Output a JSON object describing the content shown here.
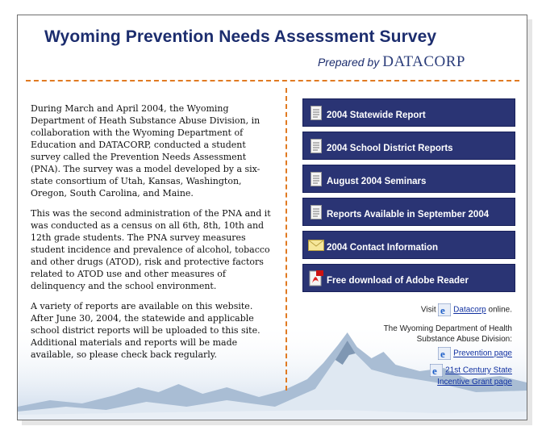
{
  "header": {
    "title": "Wyoming Prevention Needs Assessment Survey",
    "prepared_by": "Prepared by",
    "company": "DATACORP"
  },
  "intro": {
    "p1": "During March and April 2004, the Wyoming Department of Heath Substance Abuse Division, in collaboration with the Wyoming Department of Education and DATACORP, conducted a student survey called the Prevention Needs Assessment (PNA). The survey was a model developed by a six-state consortium of Utah, Kansas, Washington, Oregon, South Carolina, and Maine.",
    "p2": "This was the second administration of the PNA and it was conducted as a census on all 6th, 8th, 10th and 12th grade students. The PNA survey measures student incidence and prevalence of alcohol, tobacco and other drugs (ATOD), risk and protective factors related to ATOD use and other measures of delinquency and the school environment.",
    "p3": "A variety of reports are available on this website. After June 30, 2004, the statewide and applicable school district reports will be uploaded to this site. Additional materials and reports will be made available, so please check back regularly."
  },
  "menu": [
    {
      "label": "2004 Statewide Report",
      "icon": "document-icon"
    },
    {
      "label": "2004 School District Reports",
      "icon": "document-icon"
    },
    {
      "label": "August 2004 Seminars",
      "icon": "document-icon"
    },
    {
      "label": "Reports Available in September 2004",
      "icon": "document-icon"
    },
    {
      "label": "2004 Contact Information",
      "icon": "envelope-icon"
    },
    {
      "label": "Free download of Adobe Reader",
      "icon": "pdf-icon"
    }
  ],
  "side": {
    "visit": "Visit",
    "datacorp_link": "Datacorp",
    "online": "online.",
    "dept_line1": "The Wyoming Department of Health",
    "dept_line2": "Substance Abuse Division:",
    "prevention_link": "Prevention page",
    "century_link1": "21st Century State",
    "century_link2": "Incentive Grant page"
  },
  "colors": {
    "title": "#1c2d6e",
    "menu_bg": "#2a3474",
    "dash": "#e07a22",
    "link": "#1030a0"
  }
}
